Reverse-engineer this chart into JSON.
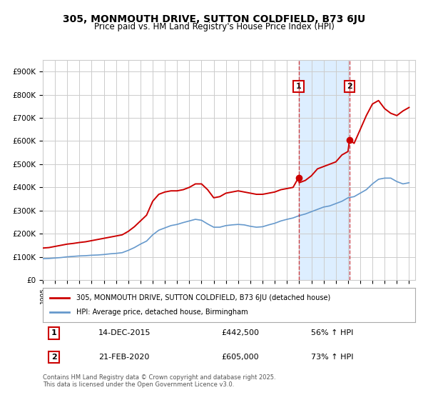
{
  "title": "305, MONMOUTH DRIVE, SUTTON COLDFIELD, B73 6JU",
  "subtitle": "Price paid vs. HM Land Registry's House Price Index (HPI)",
  "footer": "Contains HM Land Registry data © Crown copyright and database right 2025.\nThis data is licensed under the Open Government Licence v3.0.",
  "legend_label_red": "305, MONMOUTH DRIVE, SUTTON COLDFIELD, B73 6JU (detached house)",
  "legend_label_blue": "HPI: Average price, detached house, Birmingham",
  "red_color": "#cc0000",
  "blue_color": "#6699cc",
  "background_color": "#ffffff",
  "grid_color": "#cccccc",
  "shaded_color": "#ddeeff",
  "ylim": [
    0,
    950000
  ],
  "xlim_start": 1995,
  "xlim_end": 2025.5,
  "transaction1_date": 2015.95,
  "transaction2_date": 2020.12,
  "transaction1_label": "1",
  "transaction2_label": "2",
  "transaction1_price": 442500,
  "transaction2_price": 605000,
  "annotation1_date": "14-DEC-2015",
  "annotation1_price": "£442,500",
  "annotation1_hpi": "56% ↑ HPI",
  "annotation2_date": "21-FEB-2020",
  "annotation2_price": "£605,000",
  "annotation2_hpi": "73% ↑ HPI",
  "red_x": [
    1995.0,
    1995.5,
    1996.0,
    1996.5,
    1997.0,
    1997.5,
    1998.0,
    1998.5,
    1999.0,
    1999.5,
    2000.0,
    2000.5,
    2001.0,
    2001.5,
    2002.0,
    2002.5,
    2003.0,
    2003.5,
    2004.0,
    2004.5,
    2005.0,
    2005.5,
    2006.0,
    2006.5,
    2007.0,
    2007.5,
    2008.0,
    2008.5,
    2009.0,
    2009.5,
    2010.0,
    2010.5,
    2011.0,
    2011.5,
    2012.0,
    2012.5,
    2013.0,
    2013.5,
    2014.0,
    2014.5,
    2015.0,
    2015.5,
    2015.95,
    2016.0,
    2016.5,
    2017.0,
    2017.5,
    2018.0,
    2018.5,
    2019.0,
    2019.5,
    2020.0,
    2020.12,
    2020.5,
    2021.0,
    2021.5,
    2022.0,
    2022.5,
    2023.0,
    2023.5,
    2024.0,
    2024.5,
    2025.0
  ],
  "red_y": [
    138000,
    140000,
    145000,
    150000,
    155000,
    158000,
    162000,
    165000,
    170000,
    175000,
    180000,
    185000,
    190000,
    195000,
    210000,
    230000,
    255000,
    280000,
    340000,
    370000,
    380000,
    385000,
    385000,
    390000,
    400000,
    415000,
    415000,
    390000,
    355000,
    360000,
    375000,
    380000,
    385000,
    380000,
    375000,
    370000,
    370000,
    375000,
    380000,
    390000,
    395000,
    400000,
    442500,
    420000,
    430000,
    450000,
    480000,
    490000,
    500000,
    510000,
    540000,
    555000,
    605000,
    590000,
    650000,
    710000,
    760000,
    775000,
    740000,
    720000,
    710000,
    730000,
    745000
  ],
  "blue_x": [
    1995.0,
    1995.5,
    1996.0,
    1996.5,
    1997.0,
    1997.5,
    1998.0,
    1998.5,
    1999.0,
    1999.5,
    2000.0,
    2000.5,
    2001.0,
    2001.5,
    2002.0,
    2002.5,
    2003.0,
    2003.5,
    2004.0,
    2004.5,
    2005.0,
    2005.5,
    2006.0,
    2006.5,
    2007.0,
    2007.5,
    2008.0,
    2008.5,
    2009.0,
    2009.5,
    2010.0,
    2010.5,
    2011.0,
    2011.5,
    2012.0,
    2012.5,
    2013.0,
    2013.5,
    2014.0,
    2014.5,
    2015.0,
    2015.5,
    2016.0,
    2016.5,
    2017.0,
    2017.5,
    2018.0,
    2018.5,
    2019.0,
    2019.5,
    2020.0,
    2020.5,
    2021.0,
    2021.5,
    2022.0,
    2022.5,
    2023.0,
    2023.5,
    2024.0,
    2024.5,
    2025.0
  ],
  "blue_y": [
    92000,
    93000,
    95000,
    97000,
    100000,
    102000,
    104000,
    105000,
    107000,
    108000,
    110000,
    113000,
    115000,
    118000,
    128000,
    140000,
    155000,
    168000,
    195000,
    215000,
    225000,
    235000,
    240000,
    248000,
    255000,
    262000,
    258000,
    242000,
    228000,
    228000,
    235000,
    238000,
    240000,
    238000,
    232000,
    228000,
    230000,
    238000,
    245000,
    255000,
    262000,
    268000,
    278000,
    285000,
    295000,
    305000,
    315000,
    320000,
    330000,
    340000,
    355000,
    360000,
    375000,
    390000,
    415000,
    435000,
    440000,
    440000,
    425000,
    415000,
    420000
  ]
}
